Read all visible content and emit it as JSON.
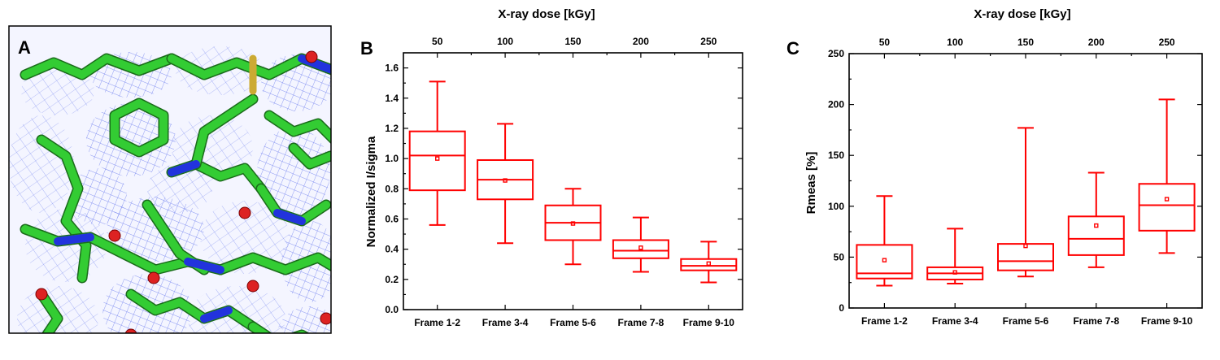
{
  "figure": {
    "panel_a": {
      "letter": "A"
    }
  },
  "colors": {
    "box": "#ff0000",
    "axis": "#000000",
    "mesh": "#5566ee",
    "carbon": "#33cc33",
    "nitrogen": "#2233dd",
    "oxygen": "#dd2222",
    "sulfur": "#ccaa33"
  },
  "chart_data": [
    {
      "id": "panel_b",
      "letter": "B",
      "type": "box",
      "top_axis": {
        "title": "X-ray dose [kGy]",
        "ticks": [
          50,
          100,
          150,
          200,
          250
        ]
      },
      "ylabel": "Normalized I/sigma",
      "ylim": [
        0.0,
        1.7
      ],
      "yticks": [
        0.0,
        0.2,
        0.4,
        0.6,
        0.8,
        1.0,
        1.2,
        1.4,
        1.6
      ],
      "ytick_labels": [
        "0.0",
        "0.2",
        "0.4",
        "0.6",
        "0.8",
        "1.0",
        "1.2",
        "1.4",
        "1.6"
      ],
      "categories": [
        "Frame 1-2",
        "Frame 3-4",
        "Frame 5-6",
        "Frame 7-8",
        "Frame 9-10"
      ],
      "boxes": [
        {
          "min": 0.56,
          "q1": 0.79,
          "median": 1.02,
          "q3": 1.18,
          "max": 1.51,
          "mean": 1.0
        },
        {
          "min": 0.44,
          "q1": 0.73,
          "median": 0.86,
          "q3": 0.99,
          "max": 1.23,
          "mean": 0.855
        },
        {
          "min": 0.3,
          "q1": 0.46,
          "median": 0.575,
          "q3": 0.69,
          "max": 0.8,
          "mean": 0.57
        },
        {
          "min": 0.25,
          "q1": 0.34,
          "median": 0.39,
          "q3": 0.46,
          "max": 0.61,
          "mean": 0.41
        },
        {
          "min": 0.18,
          "q1": 0.26,
          "median": 0.29,
          "q3": 0.335,
          "max": 0.45,
          "mean": 0.305
        }
      ]
    },
    {
      "id": "panel_c",
      "letter": "C",
      "type": "box",
      "top_axis": {
        "title": "X-ray dose [kGy]",
        "ticks": [
          50,
          100,
          150,
          200,
          250
        ]
      },
      "ylabel": "Rmeas [%]",
      "ylim": [
        0,
        250
      ],
      "yticks": [
        0,
        50,
        100,
        150,
        200,
        250
      ],
      "ytick_labels": [
        "0",
        "50",
        "100",
        "150",
        "200",
        "250"
      ],
      "categories": [
        "Frame 1-2",
        "Frame 3-4",
        "Frame 5-6",
        "Frame 7-8",
        "Frame 9-10"
      ],
      "boxes": [
        {
          "min": 22,
          "q1": 29,
          "median": 34,
          "q3": 62,
          "max": 110,
          "mean": 47
        },
        {
          "min": 24,
          "q1": 28,
          "median": 34,
          "q3": 40,
          "max": 78,
          "mean": 35
        },
        {
          "min": 31,
          "q1": 37,
          "median": 46,
          "q3": 63,
          "max": 177,
          "mean": 61
        },
        {
          "min": 40,
          "q1": 52,
          "median": 68,
          "q3": 90,
          "max": 133,
          "mean": 81
        },
        {
          "min": 54,
          "q1": 76,
          "median": 101,
          "q3": 122,
          "max": 205,
          "mean": 107
        }
      ]
    }
  ]
}
